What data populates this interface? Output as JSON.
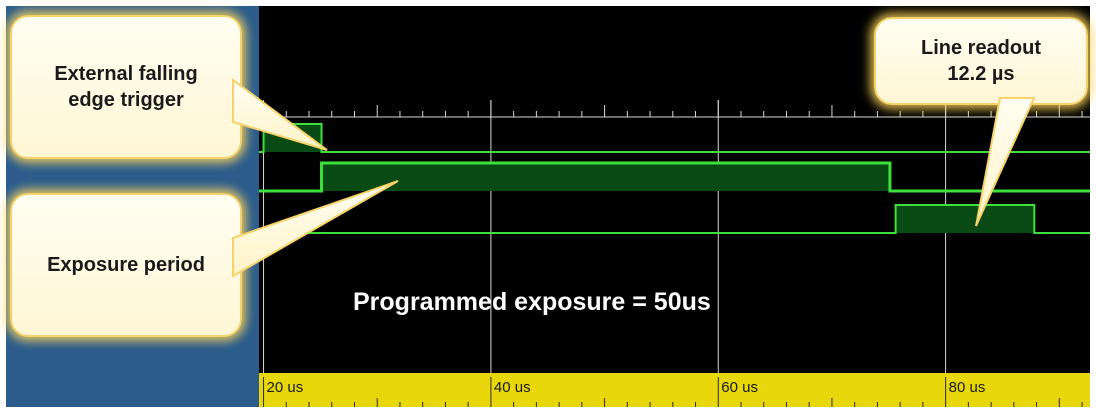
{
  "chart_data": {
    "type": "timing",
    "x_unit": "us",
    "x_ticks": [
      {
        "value": 20,
        "label": "20 us"
      },
      {
        "value": 40,
        "label": "40 us"
      },
      {
        "value": 60,
        "label": "60 us"
      },
      {
        "value": 80,
        "label": "80 us"
      }
    ],
    "xlim": [
      19.6,
      92.7
    ],
    "grid": true,
    "signals": [
      {
        "high_intervals": [
          [
            20,
            25.1
          ]
        ]
      },
      {
        "high_intervals": [
          [
            25.1,
            75.1
          ]
        ]
      },
      {
        "high_intervals": [
          [
            75.6,
            87.8
          ]
        ]
      }
    ],
    "annotation": "Programmed exposure = 50us"
  },
  "callouts": [
    {
      "lines": "External falling\nedge trigger"
    },
    {
      "lines": "Exposure period"
    },
    {
      "lines": "Line readout\n12.2 µs"
    }
  ],
  "colors": {
    "left_panel": "#2b5c8c",
    "scope_background": "#000000",
    "signal_line": "#3ee03e",
    "signal_fill": "#0a4a14",
    "grid": "#d8d8d8",
    "time_bar": "#e8d70a",
    "callout_fill": "#fffbe6",
    "callout_glow": "#f5d26a"
  }
}
